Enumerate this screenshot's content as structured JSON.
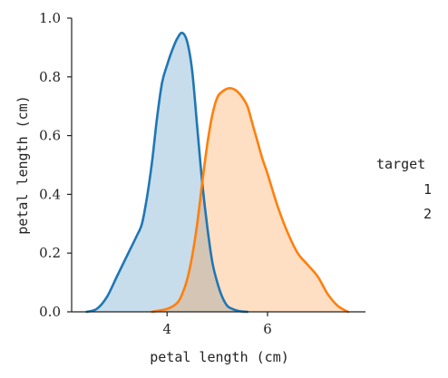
{
  "chart_data": {
    "type": "area",
    "xlabel": "petal length (cm)",
    "ylabel": "petal length (cm)",
    "xlim": [
      2.1,
      7.95
    ],
    "ylim": [
      0,
      1.0
    ],
    "xticks": [
      4,
      6
    ],
    "yticks": [
      0.0,
      0.2,
      0.4,
      0.6,
      0.8,
      1.0
    ],
    "xtick_labels": [
      "4",
      "6"
    ],
    "ytick_labels": [
      "0.0",
      "0.2",
      "0.4",
      "0.6",
      "0.8",
      "1.0"
    ],
    "grid": false,
    "legend": {
      "title": "target",
      "placement": "right",
      "entries": [
        "1",
        "2"
      ]
    },
    "series": [
      {
        "name": "1",
        "color": "#1f77b4",
        "fill": "#c6dbee",
        "x": [
          2.4,
          2.6,
          2.8,
          3.0,
          3.2,
          3.4,
          3.5,
          3.6,
          3.7,
          3.8,
          3.9,
          4.0,
          4.1,
          4.2,
          4.3,
          4.4,
          4.5,
          4.6,
          4.7,
          4.8,
          4.9,
          5.0,
          5.1,
          5.2,
          5.3,
          5.4,
          5.5,
          5.6
        ],
        "y": [
          0.0,
          0.01,
          0.05,
          0.12,
          0.19,
          0.26,
          0.3,
          0.39,
          0.51,
          0.66,
          0.78,
          0.84,
          0.89,
          0.93,
          0.95,
          0.92,
          0.82,
          0.63,
          0.44,
          0.29,
          0.17,
          0.1,
          0.05,
          0.02,
          0.01,
          0.004,
          0.001,
          0.0
        ]
      },
      {
        "name": "2",
        "color": "#ff7f0e",
        "fill": "#fcd6b4",
        "x": [
          3.7,
          4.0,
          4.2,
          4.3,
          4.4,
          4.5,
          4.6,
          4.7,
          4.8,
          4.9,
          5.0,
          5.1,
          5.2,
          5.3,
          5.4,
          5.5,
          5.6,
          5.7,
          5.8,
          5.9,
          6.0,
          6.2,
          6.4,
          6.6,
          6.8,
          7.0,
          7.2,
          7.4,
          7.6
        ],
        "y": [
          0.0,
          0.01,
          0.03,
          0.06,
          0.11,
          0.19,
          0.3,
          0.44,
          0.57,
          0.67,
          0.73,
          0.75,
          0.76,
          0.76,
          0.75,
          0.73,
          0.7,
          0.64,
          0.58,
          0.52,
          0.47,
          0.36,
          0.27,
          0.2,
          0.16,
          0.12,
          0.06,
          0.02,
          0.0
        ]
      }
    ]
  }
}
